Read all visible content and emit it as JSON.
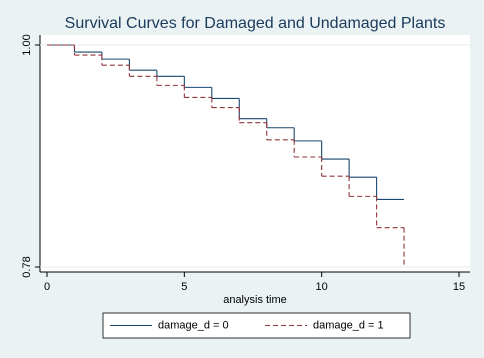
{
  "chart_data": {
    "type": "step",
    "title": "Survival Curves for Damaged and Undamaged Plants",
    "x_label": "analysis time",
    "x": [
      0,
      1,
      2,
      3,
      4,
      5,
      6,
      7,
      8,
      9,
      10,
      11,
      12,
      13
    ],
    "series": [
      {
        "name": "damage_d = 0",
        "color": "#1a476f",
        "dash": false,
        "values": [
          1.0,
          0.993,
          0.986,
          0.975,
          0.969,
          0.958,
          0.947,
          0.927,
          0.918,
          0.905,
          0.887,
          0.869,
          0.847,
          0.847
        ]
      },
      {
        "name": "damage_d = 1",
        "color": "#90353b",
        "dash": true,
        "values": [
          1.0,
          0.99,
          0.98,
          0.969,
          0.96,
          0.948,
          0.938,
          0.923,
          0.906,
          0.889,
          0.87,
          0.85,
          0.819,
          0.78
        ]
      }
    ],
    "xlim": [
      0,
      15
    ],
    "xticks": [
      0,
      5,
      10,
      15
    ],
    "ylim": [
      0.78,
      1.0
    ],
    "yticks": [
      0.78,
      {
        "value": 1.0,
        "label": "1.00"
      }
    ],
    "grid": true
  }
}
